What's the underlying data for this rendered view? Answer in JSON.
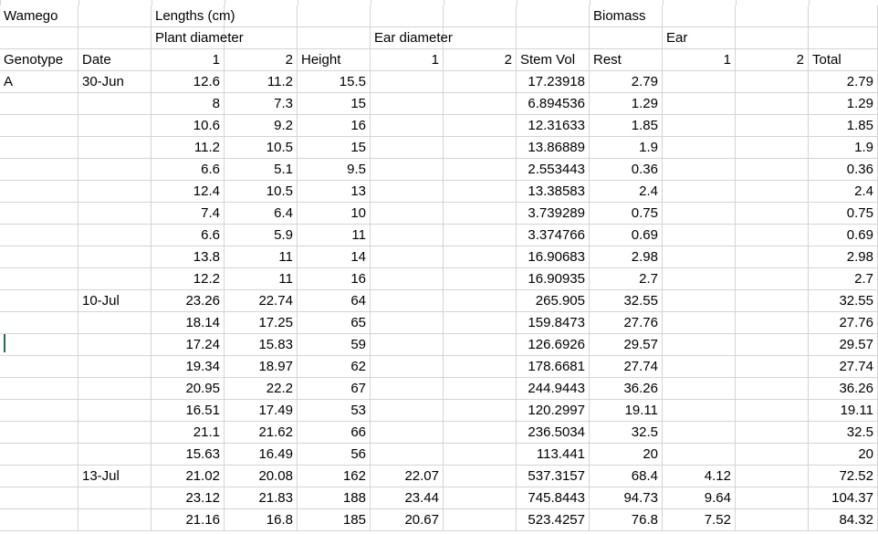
{
  "sheet": {
    "rows": [
      [
        "Wamego",
        "",
        "Lengths (cm)",
        "",
        "",
        "",
        "",
        "Biomass",
        "",
        "",
        ""
      ],
      [
        "",
        "",
        "Plant diameter",
        "",
        "",
        "Ear diameter",
        "",
        "",
        "Ear",
        "",
        ""
      ],
      [
        "Genotype",
        "Date",
        "1",
        "2",
        "Height",
        "1",
        "2",
        "Stem Vol",
        "Rest",
        "1",
        "2",
        "Total"
      ],
      [
        "A",
        "30-Jun",
        "12.6",
        "11.2",
        "15.5",
        "",
        "",
        "17.23918",
        "2.79",
        "",
        "",
        "2.79"
      ],
      [
        "",
        "",
        "8",
        "7.3",
        "15",
        "",
        "",
        "6.894536",
        "1.29",
        "",
        "",
        "1.29"
      ],
      [
        "",
        "",
        "10.6",
        "9.2",
        "16",
        "",
        "",
        "12.31633",
        "1.85",
        "",
        "",
        "1.85"
      ],
      [
        "",
        "",
        "11.2",
        "10.5",
        "15",
        "",
        "",
        "13.86889",
        "1.9",
        "",
        "",
        "1.9"
      ],
      [
        "",
        "",
        "6.6",
        "5.1",
        "9.5",
        "",
        "",
        "2.553443",
        "0.36",
        "",
        "",
        "0.36"
      ],
      [
        "",
        "",
        "12.4",
        "10.5",
        "13",
        "",
        "",
        "13.38583",
        "2.4",
        "",
        "",
        "2.4"
      ],
      [
        "",
        "",
        "7.4",
        "6.4",
        "10",
        "",
        "",
        "3.739289",
        "0.75",
        "",
        "",
        "0.75"
      ],
      [
        "",
        "",
        "6.6",
        "5.9",
        "11",
        "",
        "",
        "3.374766",
        "0.69",
        "",
        "",
        "0.69"
      ],
      [
        "",
        "",
        "13.8",
        "11",
        "14",
        "",
        "",
        "16.90683",
        "2.98",
        "",
        "",
        "2.98"
      ],
      [
        "",
        "",
        "12.2",
        "11",
        "16",
        "",
        "",
        "16.90935",
        "2.7",
        "",
        "",
        "2.7"
      ],
      [
        "",
        "10-Jul",
        "23.26",
        "22.74",
        "64",
        "",
        "",
        "265.905",
        "32.55",
        "",
        "",
        "32.55"
      ],
      [
        "",
        "",
        "18.14",
        "17.25",
        "65",
        "",
        "",
        "159.8473",
        "27.76",
        "",
        "",
        "27.76"
      ],
      [
        "",
        "",
        "17.24",
        "15.83",
        "59",
        "",
        "",
        "126.6926",
        "29.57",
        "",
        "",
        "29.57"
      ],
      [
        "",
        "",
        "19.34",
        "18.97",
        "62",
        "",
        "",
        "178.6681",
        "27.74",
        "",
        "",
        "27.74"
      ],
      [
        "",
        "",
        "20.95",
        "22.2",
        "67",
        "",
        "",
        "244.9443",
        "36.26",
        "",
        "",
        "36.26"
      ],
      [
        "",
        "",
        "16.51",
        "17.49",
        "53",
        "",
        "",
        "120.2997",
        "19.11",
        "",
        "",
        "19.11"
      ],
      [
        "",
        "",
        "21.1",
        "21.62",
        "66",
        "",
        "",
        "236.5034",
        "32.5",
        "",
        "",
        "32.5"
      ],
      [
        "",
        "",
        "15.63",
        "16.49",
        "56",
        "",
        "",
        "113.441",
        "20",
        "",
        "",
        "20"
      ],
      [
        "",
        "13-Jul",
        "21.02",
        "20.08",
        "162",
        "22.07",
        "",
        "537.3157",
        "68.4",
        "4.12",
        "",
        "72.52"
      ],
      [
        "",
        "",
        "23.12",
        "21.83",
        "188",
        "23.44",
        "",
        "745.8443",
        "94.73",
        "9.64",
        "",
        "104.37"
      ],
      [
        "",
        "",
        "21.16",
        "16.8",
        "185",
        "20.67",
        "",
        "523.4257",
        "76.8",
        "7.52",
        "",
        "84.32"
      ]
    ]
  }
}
